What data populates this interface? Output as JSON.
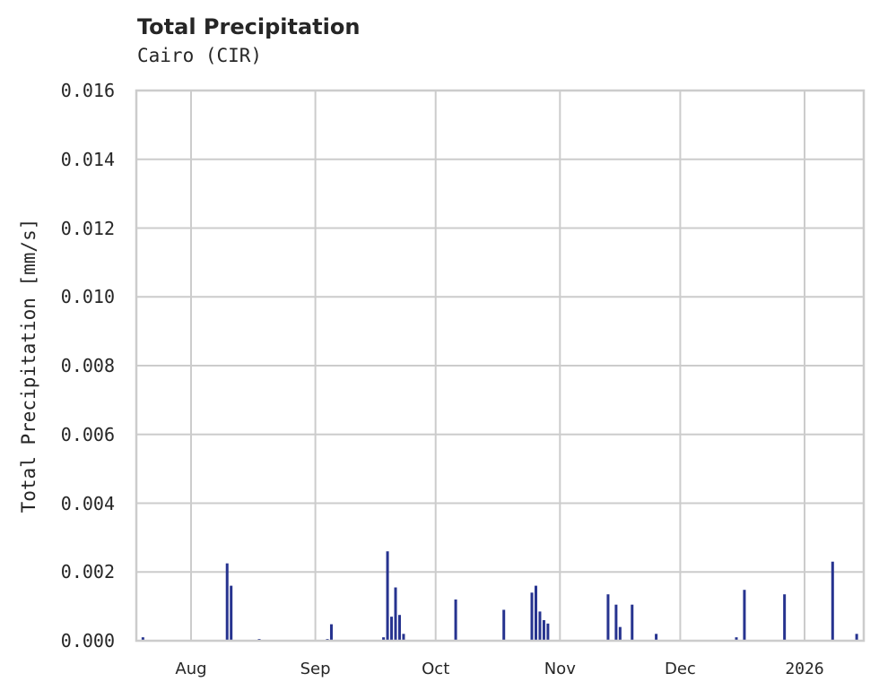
{
  "header": {
    "title": "Total Precipitation",
    "subtitle": "Cairo (CIR)"
  },
  "axes": {
    "ylabel": "Total Precipitation [mm/s]",
    "yticks": [
      "0.000",
      "0.002",
      "0.004",
      "0.006",
      "0.008",
      "0.010",
      "0.012",
      "0.014",
      "0.016"
    ],
    "xticks": [
      "Aug",
      "Sep",
      "Oct",
      "Nov",
      "Dec",
      "2026"
    ]
  },
  "colors": {
    "bar": "#26338f",
    "grid": "#cccccc",
    "text": "#262626"
  },
  "chart_data": {
    "type": "bar",
    "title": "Total Precipitation",
    "subtitle": "Cairo (CIR)",
    "xlabel": "",
    "ylabel": "Total Precipitation [mm/s]",
    "ylim": [
      0,
      0.016
    ],
    "grid": true,
    "legend": null,
    "x_tick_labels": [
      "Aug",
      "Sep",
      "Oct",
      "Nov",
      "Dec",
      "2026"
    ],
    "y_tick_labels": [
      "0.000",
      "0.002",
      "0.004",
      "0.006",
      "0.008",
      "0.010",
      "0.012",
      "0.014",
      "0.016"
    ],
    "x": [
      "2025-07-20",
      "2025-08-10",
      "2025-08-11",
      "2025-08-18",
      "2025-09-04",
      "2025-09-05",
      "2025-09-18",
      "2025-09-19",
      "2025-09-20",
      "2025-09-21",
      "2025-09-22",
      "2025-09-23",
      "2025-10-06",
      "2025-10-18",
      "2025-10-25",
      "2025-10-26",
      "2025-10-27",
      "2025-10-28",
      "2025-10-29",
      "2025-11-13",
      "2025-11-15",
      "2025-11-16",
      "2025-11-19",
      "2025-11-25",
      "2025-12-15",
      "2025-12-17",
      "2025-12-27",
      "2026-01-08",
      "2026-01-14"
    ],
    "values": [
      0.0001,
      0.00225,
      0.0016,
      5e-05,
      5e-05,
      0.00048,
      0.0001,
      0.0026,
      0.0007,
      0.00155,
      0.00075,
      0.0002,
      0.0012,
      0.0009,
      0.0014,
      0.0016,
      0.00085,
      0.0006,
      0.0005,
      0.00135,
      0.00105,
      0.0004,
      0.00105,
      0.0002,
      0.0001,
      0.00148,
      0.00135,
      0.0023,
      0.0002
    ]
  }
}
